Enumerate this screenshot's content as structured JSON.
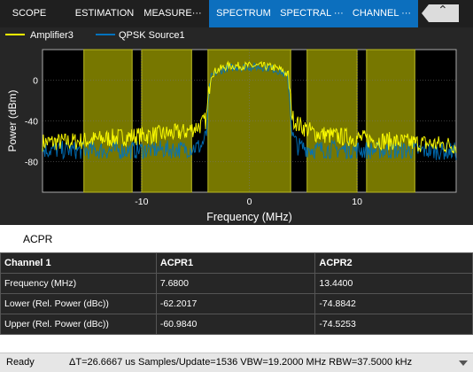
{
  "tabs": [
    {
      "label": "SCOPE",
      "contextual": false
    },
    {
      "label": "ESTIMATION",
      "contextual": false
    },
    {
      "label": "MEASURE···",
      "contextual": false
    },
    {
      "label": "SPECTRUM",
      "contextual": true
    },
    {
      "label": "SPECTRAL ···",
      "contextual": true
    },
    {
      "label": "CHANNEL ···",
      "contextual": true
    }
  ],
  "toolstrip": {
    "collapse_icon": "chevron-up-icon"
  },
  "legend": [
    {
      "name": "Amplifier3",
      "color": "#ffff00"
    },
    {
      "name": "QPSK Source1",
      "color": "#0072bd"
    }
  ],
  "chart_data": {
    "type": "line",
    "xlabel": "Frequency (MHz)",
    "ylabel": "Power (dBm)",
    "xlim": [
      -19.2,
      19.2
    ],
    "ylim": [
      -110,
      30
    ],
    "xticks": [
      "-10",
      "0",
      "10"
    ],
    "xtick_values": [
      -10,
      0,
      10
    ],
    "yticks": [
      "0",
      "-40",
      "-80"
    ],
    "ytick_values": [
      0,
      -40,
      -80
    ],
    "grid": true,
    "channel_bands_mhz": [
      [
        -15.36,
        -10.88
      ],
      [
        -10.0,
        -5.36
      ],
      [
        -3.84,
        3.84
      ],
      [
        5.36,
        10.0
      ],
      [
        10.88,
        15.36
      ]
    ],
    "series": [
      {
        "name": "Amplifier3",
        "color": "#ffff00",
        "x": [
          -19.2,
          -16,
          -12,
          -8,
          -6,
          -4.5,
          -4,
          -3.6,
          -3,
          -2,
          -1,
          0,
          1,
          2,
          3,
          3.6,
          4,
          4.5,
          6,
          8,
          12,
          16,
          19.2
        ],
        "y": [
          -61,
          -60,
          -56,
          -53,
          -51,
          -44,
          -39,
          5,
          10,
          14,
          14,
          14,
          14,
          13,
          10,
          5,
          -37,
          -43,
          -52,
          -55,
          -59,
          -62,
          -64
        ]
      },
      {
        "name": "QPSK Source1",
        "color": "#0072bd",
        "x": [
          -19.2,
          -16,
          -12,
          -8,
          -6,
          -4.5,
          -4,
          -3.6,
          -3,
          -2,
          -1,
          0,
          1,
          2,
          3,
          3.6,
          4,
          4.5,
          6,
          8,
          12,
          16,
          19.2
        ],
        "y": [
          -68,
          -69,
          -69,
          -68,
          -68,
          -65,
          -55,
          2,
          8,
          12,
          13,
          13,
          13,
          12,
          8,
          2,
          -55,
          -65,
          -68,
          -68,
          -69,
          -69,
          -70
        ]
      }
    ]
  },
  "acpr": {
    "title": "ACPR",
    "headers": [
      "Channel 1",
      "ACPR1",
      "ACPR2"
    ],
    "rows": [
      [
        "Frequency (MHz)",
        "7.6800",
        "13.4400"
      ],
      [
        "Lower (Rel. Power (dBc))",
        "-62.2017",
        "-74.8842"
      ],
      [
        "Upper (Rel. Power (dBc))",
        "-60.9840",
        "-74.5253"
      ]
    ]
  },
  "status": {
    "ready": "Ready",
    "info": "ΔT=26.6667 us  Samples/Update=1536  VBW=19.2000 MHz  RBW=37.5000 kHz"
  }
}
